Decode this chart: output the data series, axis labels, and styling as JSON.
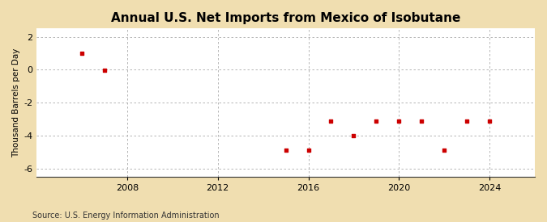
{
  "title": "Annual U.S. Net Imports from Mexico of Isobutane",
  "ylabel": "Thousand Barrels per Day",
  "source": "Source: U.S. Energy Information Administration",
  "background_color": "#f0deb0",
  "plot_background_color": "#ffffff",
  "marker_color": "#cc0000",
  "x_data": [
    2006,
    2007,
    2015,
    2016,
    2017,
    2018,
    2019,
    2020,
    2021,
    2022,
    2023,
    2024
  ],
  "y_data": [
    1.0,
    -0.05,
    -4.9,
    -4.9,
    -3.1,
    -4.0,
    -3.1,
    -3.1,
    -3.1,
    -4.9,
    -3.1,
    -3.1
  ],
  "ylim": [
    -6.5,
    2.5
  ],
  "yticks": [
    -6,
    -4,
    -2,
    0,
    2
  ],
  "xlim": [
    2004.0,
    2026.0
  ],
  "xticks": [
    2008,
    2012,
    2016,
    2020,
    2024
  ],
  "grid_color": "#aaaaaa",
  "title_fontsize": 11,
  "label_fontsize": 7.5,
  "tick_fontsize": 8,
  "source_fontsize": 7
}
